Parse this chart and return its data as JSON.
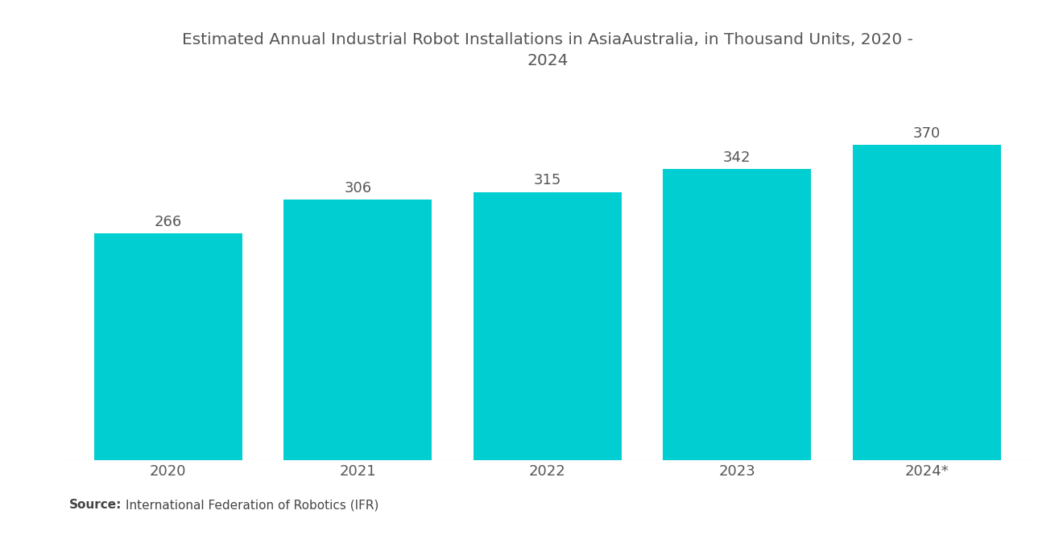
{
  "title_line1": "Estimated Annual Industrial Robot Installations in AsiaAustralia, in Thousand Units, 2020 -",
  "title_line2": "2024",
  "categories": [
    "2020",
    "2021",
    "2022",
    "2023",
    "2024*"
  ],
  "values": [
    266,
    306,
    315,
    342,
    370
  ],
  "bar_color": "#00CED1",
  "background_color": "#FFFFFF",
  "title_color": "#555555",
  "label_color": "#555555",
  "tick_color": "#555555",
  "source_bold": "Source:",
  "source_text": "International Federation of Robotics (IFR)",
  "title_fontsize": 14.5,
  "label_fontsize": 13,
  "tick_fontsize": 13,
  "source_fontsize": 11,
  "ylim": [
    0,
    440
  ],
  "bar_width": 0.78
}
